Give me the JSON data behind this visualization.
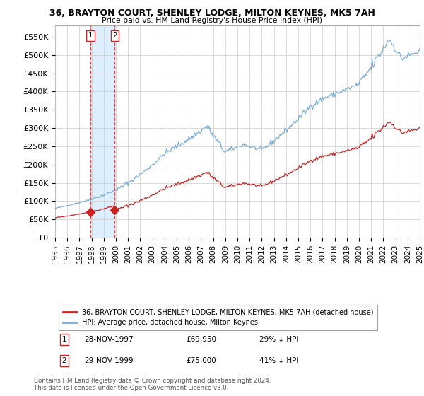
{
  "title": "36, BRAYTON COURT, SHENLEY LODGE, MILTON KEYNES, MK5 7AH",
  "subtitle": "Price paid vs. HM Land Registry's House Price Index (HPI)",
  "ylabel_ticks": [
    "£0",
    "£50K",
    "£100K",
    "£150K",
    "£200K",
    "£250K",
    "£300K",
    "£350K",
    "£400K",
    "£450K",
    "£500K",
    "£550K"
  ],
  "ytick_values": [
    0,
    50000,
    100000,
    150000,
    200000,
    250000,
    300000,
    350000,
    400000,
    450000,
    500000,
    550000
  ],
  "hpi_color": "#7aadd4",
  "price_color": "#cc2222",
  "sale_points": [
    {
      "date_num": 1997.91,
      "price": 69950,
      "label": "1",
      "date_str": "28-NOV-1997",
      "pct": "29% ↓ HPI"
    },
    {
      "date_num": 1999.91,
      "price": 75000,
      "label": "2",
      "date_str": "29-NOV-1999",
      "pct": "41% ↓ HPI"
    }
  ],
  "legend_entries": [
    {
      "label": "36, BRAYTON COURT, SHENLEY LODGE, MILTON KEYNES, MK5 7AH (detached house)",
      "color": "#cc2222"
    },
    {
      "label": "HPI: Average price, detached house, Milton Keynes",
      "color": "#7aadd4"
    }
  ],
  "footer": "Contains HM Land Registry data © Crown copyright and database right 2024.\nThis data is licensed under the Open Government Licence v3.0.",
  "background_color": "#ffffff",
  "grid_color": "#cccccc",
  "shade_color": "#ddeeff"
}
